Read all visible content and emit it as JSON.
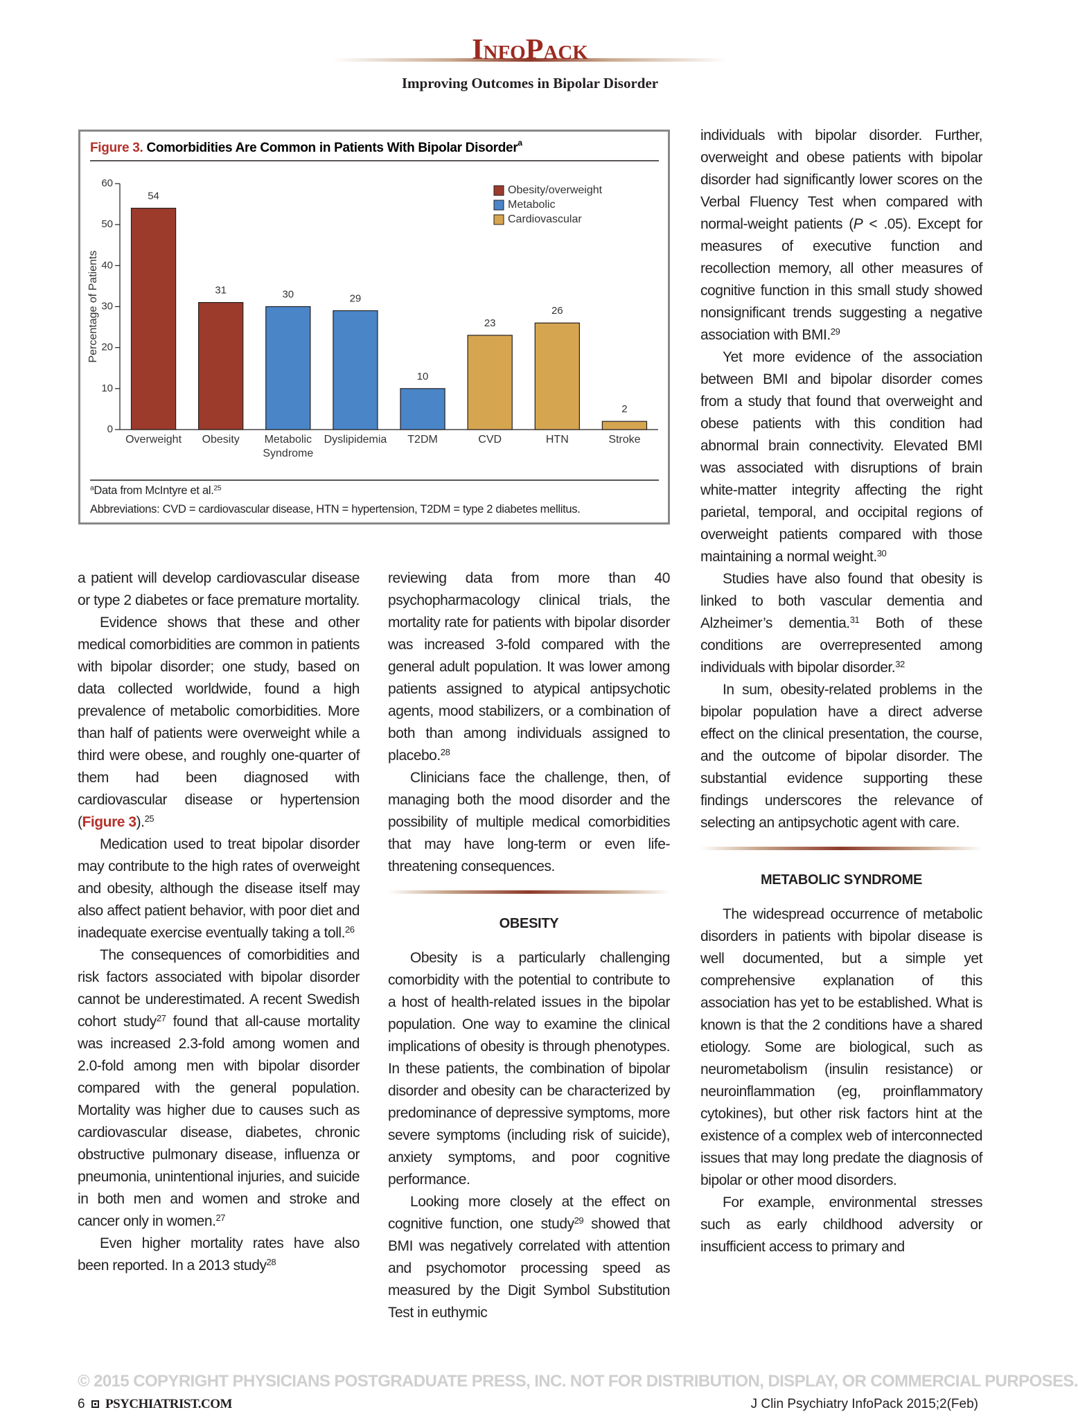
{
  "header": {
    "brand": "InfoPack",
    "subtitle": "Improving Outcomes in Bipolar Disorder"
  },
  "chart_data": {
    "type": "bar",
    "figure_label": "Figure 3.",
    "title": "Comorbidities Are Common in Patients With Bipolar Disorder",
    "title_sup": "a",
    "ylabel": "Percentage of Patients",
    "categories": [
      "Overweight",
      "Obesity",
      "Metabolic Syndrome",
      "Dyslipidemia",
      "T2DM",
      "CVD",
      "HTN",
      "Stroke"
    ],
    "series": [
      {
        "name": "Obesity/overweight",
        "color": "#9c3b2b",
        "values": [
          54,
          31,
          null,
          null,
          null,
          null,
          null,
          null
        ]
      },
      {
        "name": "Metabolic",
        "color": "#4a85c8",
        "values": [
          null,
          null,
          30,
          29,
          10,
          null,
          null,
          null
        ]
      },
      {
        "name": "Cardiovascular",
        "color": "#d6a550",
        "values": [
          null,
          null,
          null,
          null,
          null,
          23,
          26,
          2
        ]
      }
    ],
    "ylim": [
      0,
      60
    ],
    "yticks": [
      0,
      10,
      20,
      30,
      40,
      50,
      60
    ],
    "grid": false,
    "legend": "upper right",
    "notes": [
      [
        {
          "sup": "a"
        },
        "Data from McIntyre et al.",
        {
          "sup": "25"
        }
      ],
      [
        "Abbreviations: CVD = cardiovascular disease, HTN = hypertension, T2DM = type 2 diabetes mellitus."
      ]
    ]
  },
  "columns": [
    [
      {
        "continued": [
          "a patient will develop cardiovascular disease or type 2 diabetes or face premature mortality."
        ]
      },
      {
        "paragraph": [
          "Evidence shows that these and other medical comorbidities are common in patients with bipolar disorder; one study, based on data collected worldwide, found a high prevalence of metabolic comorbidities. More than half of patients were overweight while a third were obese, and roughly one-quarter of them had been diagnosed with cardiovascular disease or hypertension (",
          {
            "ref": "Figure 3"
          },
          ").",
          {
            "sup": "25"
          }
        ]
      },
      {
        "paragraph": [
          "Medication used to treat bipolar disorder may contribute to the high rates of overweight and obesity, although the disease itself may also affect patient behavior, with poor diet and inadequate exercise eventually taking a toll.",
          {
            "sup": "26"
          }
        ]
      },
      {
        "paragraph": [
          "The consequences of comorbidities and risk factors associated with bipolar disorder cannot be underestimated. A recent Swedish cohort study",
          {
            "sup": "27"
          },
          " found that all-cause mortality was increased 2.3-fold among women and 2.0-fold among men with bipolar disorder compared with the general population. Mortality was higher due to causes such as cardiovascular disease, diabetes, chronic obstructive pulmonary disease, influenza or pneumonia, unintentional injuries, and suicide in both men and women and stroke and cancer only in women.",
          {
            "sup": "27"
          }
        ]
      },
      {
        "paragraph": [
          "Even higher mortality rates have also been reported. In a 2013 study",
          {
            "sup": "28"
          }
        ]
      }
    ],
    [
      {
        "continued": [
          "reviewing data from more than 40 psychopharmacology clinical trials, the mortality rate for patients with bipolar disorder was increased 3-fold compared with the general adult population. It was lower among patients assigned to atypical antipsychotic agents, mood stabilizers, or a combination of both than among individuals assigned to placebo.",
          {
            "sup": "28"
          }
        ]
      },
      {
        "paragraph": [
          "Clinicians face the challenge, then, of managing both the mood disorder and the possibility of multiple medical comorbidities that may have long-term or even life-threatening consequences."
        ]
      },
      {
        "heading": "OBESITY"
      },
      {
        "paragraph": [
          "Obesity is a particularly challenging comorbidity with the potential to contribute to a host of health-related issues in the bipolar population. One way to examine the clinical implications of obesity is through phenotypes. In these patients, the combination of bipolar disorder and obesity can be characterized by predominance of depressive symptoms, more severe symptoms (including risk of suicide), anxiety symptoms, and poor cognitive performance."
        ]
      },
      {
        "paragraph": [
          "Looking more closely at the effect on cognitive function, one study",
          {
            "sup": "29"
          },
          " showed that BMI was negatively correlated with attention and psychomotor processing speed as measured by the Digit Symbol Substitution Test in euthymic"
        ]
      }
    ],
    [
      {
        "continued": [
          "individuals with bipolar disorder. Further, overweight and obese patients with bipolar disorder had significantly lower scores on the Verbal Fluency Test when compared with normal-weight patients (",
          {
            "i": "P"
          },
          " < .05). Except for measures of executive function and recollection memory, all other measures of cognitive function in this small study showed nonsignificant trends suggesting a negative association with BMI.",
          {
            "sup": "29"
          }
        ]
      },
      {
        "paragraph": [
          "Yet more evidence of the association between BMI and bipolar disorder comes from a study that found that overweight and obese patients with this condition had abnormal brain connectivity. Elevated BMI was associated with disruptions of brain white-matter integrity affecting the right parietal, temporal, and occipital regions of overweight patients compared with those maintaining a normal weight.",
          {
            "sup": "30"
          }
        ]
      },
      {
        "paragraph": [
          "Studies have also found that obesity is linked to both vascular dementia and Alzheimer’s dementia.",
          {
            "sup": "31"
          },
          " Both of these conditions are overrepresented among individuals with bipolar disorder.",
          {
            "sup": "32"
          }
        ]
      },
      {
        "paragraph": [
          "In sum, obesity-related problems in the bipolar population have a direct adverse effect on the clinical presentation, the course, and the outcome of bipolar disorder. The substantial evidence supporting these findings underscores the relevance of selecting an antipsychotic agent with care."
        ]
      },
      {
        "heading": "METABOLIC SYNDROME"
      },
      {
        "paragraph": [
          "The widespread occurrence of metabolic disorders in patients with bipolar disease is well documented, but a simple yet comprehensive explanation of this association has yet to be established. What is known is that the 2 conditions have a shared etiology. Some are biological, such as neurometabolism (insulin resistance) or neuroinflammation (eg, proinflammatory cytokines), but other risk factors hint at the existence of a complex web of interconnected issues that may long predate the diagnosis of bipolar or other mood disorders."
        ]
      },
      {
        "paragraph": [
          "For example, environmental stresses such as early childhood adversity or insufficient access to primary and"
        ]
      }
    ]
  ],
  "footer": {
    "page": "6",
    "site": "PSYCHIATRIST.COM",
    "watermark": "© 2015 COPYRIGHT PHYSICIANS POSTGRADUATE PRESS, INC. NOT FOR DISTRIBUTION, DISPLAY, OR COMMERCIAL PURPOSES.",
    "citation": "J Clin Psychiatry InfoPack 2015;2(Feb)"
  }
}
